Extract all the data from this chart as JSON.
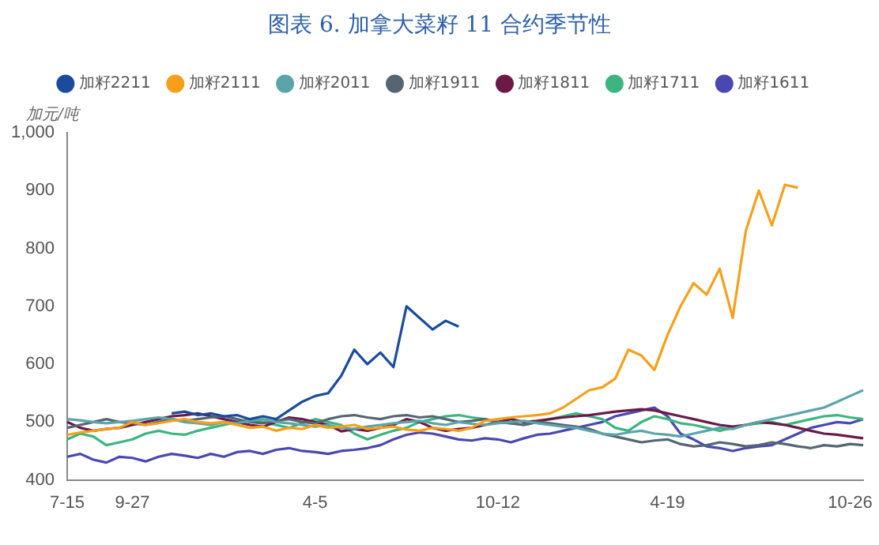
{
  "chart_data": {
    "type": "line",
    "title": "图表 6.  加拿大菜籽 11 合约季节性",
    "ylabel": "加元/吨",
    "categories": [
      "7-15",
      null,
      null,
      null,
      null,
      "9-27",
      null,
      null,
      null,
      null,
      null,
      null,
      null,
      null,
      null,
      null,
      null,
      null,
      null,
      "4-5",
      null,
      null,
      null,
      null,
      null,
      null,
      null,
      null,
      null,
      null,
      null,
      null,
      null,
      "10-12",
      null,
      null,
      null,
      null,
      null,
      null,
      null,
      null,
      null,
      null,
      null,
      null,
      "4-19",
      null,
      null,
      null,
      null,
      null,
      null,
      null,
      null,
      null,
      null,
      null,
      null,
      null,
      "10-26",
      null
    ],
    "ylim": [
      400,
      1000
    ],
    "yticks": [
      400,
      500,
      600,
      700,
      800,
      900,
      {
        "value": 1000,
        "label": "1,000"
      }
    ],
    "grid": false,
    "legend": "top",
    "marker": "none",
    "line_style": "solid",
    "series": [
      {
        "name": "加籽2211",
        "color": "#1a4b9c",
        "values": [
          null,
          null,
          null,
          null,
          null,
          null,
          null,
          null,
          515,
          518,
          512,
          515,
          510,
          512,
          505,
          510,
          505,
          520,
          535,
          545,
          550,
          580,
          625,
          600,
          620,
          595,
          700,
          680,
          660,
          675,
          665,
          null,
          null,
          null,
          null,
          null,
          null,
          null,
          null,
          null,
          null,
          null,
          null,
          null,
          null,
          null,
          null,
          null,
          null,
          null,
          null,
          null,
          null,
          null,
          null,
          null,
          null,
          null,
          null,
          null,
          null,
          null
        ]
      },
      {
        "name": "加籽2111",
        "color": "#f5a01a",
        "values": [
          478,
          482,
          485,
          488,
          490,
          500,
          495,
          498,
          502,
          505,
          500,
          498,
          500,
          495,
          490,
          492,
          485,
          490,
          488,
          495,
          490,
          492,
          495,
          488,
          490,
          492,
          487,
          485,
          490,
          488,
          485,
          490,
          502,
          505,
          508,
          510,
          512,
          515,
          525,
          540,
          555,
          560,
          575,
          625,
          615,
          590,
          650,
          700,
          740,
          720,
          765,
          680,
          830,
          900,
          840,
          910,
          905,
          null,
          null,
          null,
          null,
          null
        ]
      },
      {
        "name": "加籽2011",
        "color": "#5ba4a9",
        "values": [
          505,
          503,
          500,
          498,
          500,
          502,
          505,
          508,
          505,
          500,
          498,
          495,
          500,
          498,
          502,
          505,
          500,
          498,
          495,
          492,
          495,
          490,
          488,
          492,
          495,
          498,
          500,
          502,
          498,
          495,
          500,
          497,
          495,
          498,
          500,
          502,
          498,
          495,
          492,
          490,
          485,
          480,
          478,
          482,
          485,
          480,
          478,
          475,
          480,
          485,
          490,
          488,
          495,
          500,
          505,
          510,
          515,
          520,
          525,
          535,
          545,
          555
        ]
      },
      {
        "name": "加籽1911",
        "color": "#556672",
        "values": [
          490,
          495,
          500,
          505,
          500,
          498,
          495,
          500,
          505,
          502,
          505,
          508,
          510,
          505,
          500,
          498,
          502,
          505,
          500,
          498,
          505,
          510,
          512,
          508,
          505,
          510,
          512,
          508,
          510,
          505,
          500,
          502,
          505,
          500,
          498,
          495,
          500,
          498,
          495,
          492,
          488,
          480,
          475,
          470,
          465,
          468,
          470,
          462,
          458,
          460,
          465,
          462,
          458,
          460,
          465,
          462,
          458,
          455,
          460,
          458,
          462,
          460
        ]
      },
      {
        "name": "加籽1811",
        "color": "#6b1a47",
        "values": [
          500,
          490,
          485,
          488,
          490,
          495,
          500,
          505,
          510,
          512,
          515,
          510,
          505,
          500,
          495,
          492,
          500,
          508,
          505,
          500,
          495,
          484,
          488,
          485,
          490,
          495,
          505,
          500,
          490,
          485,
          488,
          490,
          495,
          500,
          505,
          500,
          502,
          505,
          508,
          510,
          512,
          515,
          518,
          520,
          522,
          520,
          515,
          510,
          505,
          500,
          495,
          492,
          495,
          500,
          498,
          495,
          490,
          485,
          480,
          478,
          475,
          472
        ]
      },
      {
        "name": "加籽1711",
        "color": "#3cb580",
        "values": [
          470,
          480,
          475,
          460,
          465,
          470,
          480,
          485,
          480,
          478,
          485,
          490,
          495,
          500,
          505,
          500,
          495,
          490,
          498,
          505,
          500,
          495,
          480,
          470,
          478,
          485,
          490,
          500,
          505,
          510,
          512,
          508,
          505,
          500,
          498,
          495,
          500,
          505,
          510,
          515,
          510,
          505,
          490,
          485,
          500,
          510,
          505,
          498,
          495,
          490,
          485,
          490,
          495,
          498,
          500,
          495,
          500,
          505,
          510,
          512,
          508,
          505
        ]
      },
      {
        "name": "加籽1611",
        "color": "#4a48b0",
        "values": [
          440,
          445,
          435,
          430,
          440,
          438,
          432,
          440,
          445,
          442,
          438,
          445,
          440,
          448,
          450,
          445,
          452,
          455,
          450,
          448,
          445,
          450,
          452,
          455,
          460,
          470,
          478,
          482,
          480,
          475,
          470,
          468,
          472,
          470,
          465,
          472,
          478,
          480,
          485,
          490,
          495,
          500,
          510,
          515,
          520,
          525,
          510,
          480,
          470,
          458,
          455,
          450,
          455,
          458,
          460,
          470,
          480,
          490,
          495,
          500,
          498,
          505
        ]
      }
    ]
  }
}
